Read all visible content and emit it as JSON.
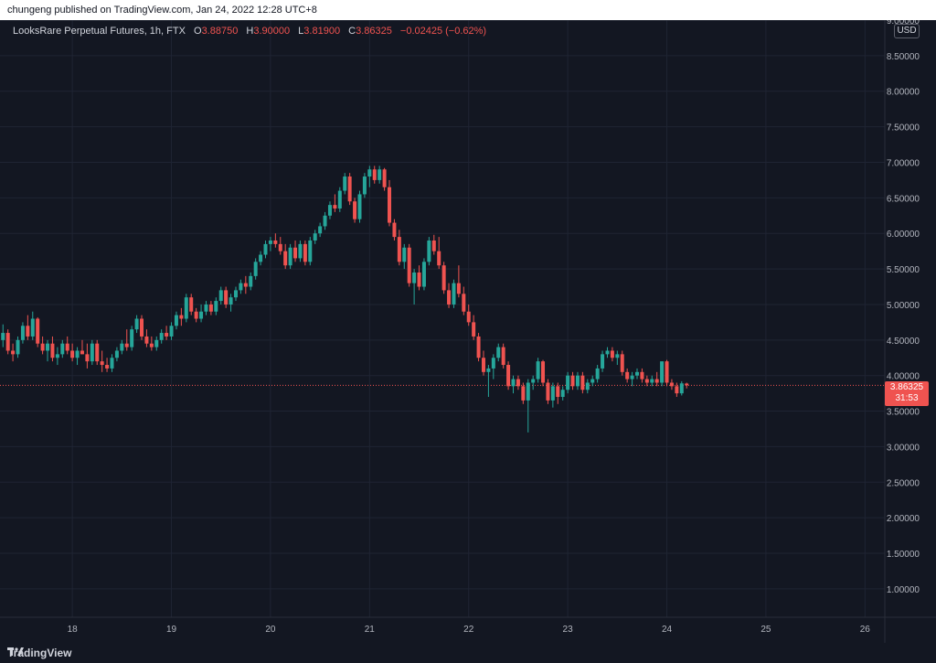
{
  "publisher": "chungeng published on TradingView.com, Jan 24, 2022 12:28 UTC+8",
  "legend": {
    "symbol": "LooksRare Perpetual Futures, 1h, FTX",
    "open_label": "O",
    "open": "3.88750",
    "high_label": "H",
    "high": "3.90000",
    "low_label": "L",
    "low": "3.81900",
    "close_label": "C",
    "close": "3.86325",
    "change": "−0.02425 (−0.62%)"
  },
  "currency": "USD",
  "last_price": {
    "price": "3.86325",
    "countdown": "31:53"
  },
  "brand": "TradingView",
  "colors": {
    "up": "#26a69a",
    "down": "#ef5350",
    "background": "#131722",
    "grid": "#1f2433"
  },
  "chart_data": {
    "type": "candlestick",
    "title": "LooksRare Perpetual Futures, 1h, FTX",
    "currency": "USD",
    "yaxis": {
      "ticks": [
        "9.00000",
        "8.50000",
        "8.00000",
        "7.50000",
        "7.00000",
        "6.50000",
        "6.00000",
        "5.50000",
        "5.00000",
        "4.50000",
        "4.00000",
        "3.50000",
        "3.00000",
        "2.50000",
        "2.00000",
        "1.50000",
        "1.00000"
      ],
      "range": [
        0.6,
        9.0
      ]
    },
    "xaxis": {
      "ticks": [
        "18",
        "19",
        "20",
        "21",
        "22",
        "23",
        "24",
        "25",
        "26"
      ],
      "range": [
        17.27,
        26.2
      ]
    },
    "last_price": 3.86325,
    "candles": [
      {
        "t": 17.3,
        "o": 4.5,
        "h": 4.72,
        "l": 4.4,
        "c": 4.6
      },
      {
        "t": 17.35,
        "o": 4.6,
        "h": 4.65,
        "l": 4.3,
        "c": 4.35
      },
      {
        "t": 17.4,
        "o": 4.35,
        "h": 4.45,
        "l": 4.2,
        "c": 4.3
      },
      {
        "t": 17.45,
        "o": 4.3,
        "h": 4.55,
        "l": 4.25,
        "c": 4.5
      },
      {
        "t": 17.5,
        "o": 4.5,
        "h": 4.75,
        "l": 4.45,
        "c": 4.7
      },
      {
        "t": 17.55,
        "o": 4.7,
        "h": 4.85,
        "l": 4.5,
        "c": 4.55
      },
      {
        "t": 17.6,
        "o": 4.55,
        "h": 4.9,
        "l": 4.5,
        "c": 4.8
      },
      {
        "t": 17.65,
        "o": 4.8,
        "h": 4.82,
        "l": 4.4,
        "c": 4.45
      },
      {
        "t": 17.7,
        "o": 4.45,
        "h": 4.55,
        "l": 4.3,
        "c": 4.35
      },
      {
        "t": 17.75,
        "o": 4.35,
        "h": 4.5,
        "l": 4.2,
        "c": 4.45
      },
      {
        "t": 17.8,
        "o": 4.45,
        "h": 4.55,
        "l": 4.2,
        "c": 4.25
      },
      {
        "t": 17.85,
        "o": 4.25,
        "h": 4.4,
        "l": 4.15,
        "c": 4.3
      },
      {
        "t": 17.9,
        "o": 4.3,
        "h": 4.5,
        "l": 4.25,
        "c": 4.45
      },
      {
        "t": 17.95,
        "o": 4.45,
        "h": 4.55,
        "l": 4.3,
        "c": 4.35
      },
      {
        "t": 18.0,
        "o": 4.35,
        "h": 4.45,
        "l": 4.2,
        "c": 4.25
      },
      {
        "t": 18.05,
        "o": 4.25,
        "h": 4.4,
        "l": 4.15,
        "c": 4.35
      },
      {
        "t": 18.1,
        "o": 4.35,
        "h": 4.5,
        "l": 4.3,
        "c": 4.3
      },
      {
        "t": 18.15,
        "o": 4.3,
        "h": 4.45,
        "l": 4.1,
        "c": 4.2
      },
      {
        "t": 18.2,
        "o": 4.2,
        "h": 4.5,
        "l": 4.15,
        "c": 4.45
      },
      {
        "t": 18.25,
        "o": 4.45,
        "h": 4.5,
        "l": 4.15,
        "c": 4.2
      },
      {
        "t": 18.3,
        "o": 4.2,
        "h": 4.35,
        "l": 4.05,
        "c": 4.15
      },
      {
        "t": 18.35,
        "o": 4.15,
        "h": 4.25,
        "l": 4.05,
        "c": 4.1
      },
      {
        "t": 18.4,
        "o": 4.1,
        "h": 4.3,
        "l": 4.05,
        "c": 4.25
      },
      {
        "t": 18.45,
        "o": 4.25,
        "h": 4.4,
        "l": 4.2,
        "c": 4.35
      },
      {
        "t": 18.5,
        "o": 4.35,
        "h": 4.5,
        "l": 4.3,
        "c": 4.45
      },
      {
        "t": 18.55,
        "o": 4.45,
        "h": 4.65,
        "l": 4.35,
        "c": 4.4
      },
      {
        "t": 18.6,
        "o": 4.4,
        "h": 4.7,
        "l": 4.35,
        "c": 4.65
      },
      {
        "t": 18.65,
        "o": 4.65,
        "h": 4.85,
        "l": 4.6,
        "c": 4.8
      },
      {
        "t": 18.7,
        "o": 4.8,
        "h": 4.85,
        "l": 4.5,
        "c": 4.55
      },
      {
        "t": 18.75,
        "o": 4.55,
        "h": 4.65,
        "l": 4.4,
        "c": 4.45
      },
      {
        "t": 18.8,
        "o": 4.45,
        "h": 4.55,
        "l": 4.35,
        "c": 4.4
      },
      {
        "t": 18.85,
        "o": 4.4,
        "h": 4.55,
        "l": 4.35,
        "c": 4.5
      },
      {
        "t": 18.9,
        "o": 4.5,
        "h": 4.65,
        "l": 4.45,
        "c": 4.6
      },
      {
        "t": 18.95,
        "o": 4.6,
        "h": 4.7,
        "l": 4.5,
        "c": 4.55
      },
      {
        "t": 19.0,
        "o": 4.55,
        "h": 4.75,
        "l": 4.5,
        "c": 4.7
      },
      {
        "t": 19.05,
        "o": 4.7,
        "h": 4.9,
        "l": 4.65,
        "c": 4.85
      },
      {
        "t": 19.1,
        "o": 4.85,
        "h": 4.95,
        "l": 4.7,
        "c": 4.8
      },
      {
        "t": 19.15,
        "o": 4.8,
        "h": 5.15,
        "l": 4.75,
        "c": 5.1
      },
      {
        "t": 19.2,
        "o": 5.1,
        "h": 5.15,
        "l": 4.85,
        "c": 4.9
      },
      {
        "t": 19.25,
        "o": 4.9,
        "h": 4.95,
        "l": 4.75,
        "c": 4.8
      },
      {
        "t": 19.3,
        "o": 4.8,
        "h": 5.0,
        "l": 4.75,
        "c": 4.9
      },
      {
        "t": 19.35,
        "o": 4.9,
        "h": 5.05,
        "l": 4.85,
        "c": 5.0
      },
      {
        "t": 19.4,
        "o": 5.0,
        "h": 5.05,
        "l": 4.85,
        "c": 4.9
      },
      {
        "t": 19.45,
        "o": 4.9,
        "h": 5.1,
        "l": 4.85,
        "c": 5.05
      },
      {
        "t": 19.5,
        "o": 5.05,
        "h": 5.25,
        "l": 5.0,
        "c": 5.2
      },
      {
        "t": 19.55,
        "o": 5.2,
        "h": 5.25,
        "l": 4.95,
        "c": 5.0
      },
      {
        "t": 19.6,
        "o": 5.0,
        "h": 5.15,
        "l": 4.9,
        "c": 5.1
      },
      {
        "t": 19.65,
        "o": 5.1,
        "h": 5.25,
        "l": 5.05,
        "c": 5.2
      },
      {
        "t": 19.7,
        "o": 5.2,
        "h": 5.35,
        "l": 5.15,
        "c": 5.3
      },
      {
        "t": 19.75,
        "o": 5.3,
        "h": 5.4,
        "l": 5.15,
        "c": 5.25
      },
      {
        "t": 19.8,
        "o": 5.25,
        "h": 5.45,
        "l": 5.2,
        "c": 5.4
      },
      {
        "t": 19.85,
        "o": 5.4,
        "h": 5.65,
        "l": 5.35,
        "c": 5.6
      },
      {
        "t": 19.9,
        "o": 5.6,
        "h": 5.75,
        "l": 5.55,
        "c": 5.7
      },
      {
        "t": 19.95,
        "o": 5.7,
        "h": 5.9,
        "l": 5.65,
        "c": 5.85
      },
      {
        "t": 20.0,
        "o": 5.85,
        "h": 5.95,
        "l": 5.75,
        "c": 5.9
      },
      {
        "t": 20.05,
        "o": 5.9,
        "h": 6.0,
        "l": 5.8,
        "c": 5.85
      },
      {
        "t": 20.1,
        "o": 5.85,
        "h": 5.95,
        "l": 5.7,
        "c": 5.75
      },
      {
        "t": 20.15,
        "o": 5.75,
        "h": 5.85,
        "l": 5.5,
        "c": 5.55
      },
      {
        "t": 20.2,
        "o": 5.55,
        "h": 5.85,
        "l": 5.5,
        "c": 5.8
      },
      {
        "t": 20.25,
        "o": 5.8,
        "h": 5.9,
        "l": 5.6,
        "c": 5.65
      },
      {
        "t": 20.3,
        "o": 5.65,
        "h": 5.9,
        "l": 5.6,
        "c": 5.85
      },
      {
        "t": 20.35,
        "o": 5.85,
        "h": 5.9,
        "l": 5.55,
        "c": 5.6
      },
      {
        "t": 20.4,
        "o": 5.6,
        "h": 5.95,
        "l": 5.55,
        "c": 5.9
      },
      {
        "t": 20.45,
        "o": 5.9,
        "h": 6.05,
        "l": 5.85,
        "c": 6.0
      },
      {
        "t": 20.5,
        "o": 6.0,
        "h": 6.15,
        "l": 5.95,
        "c": 6.1
      },
      {
        "t": 20.55,
        "o": 6.1,
        "h": 6.3,
        "l": 6.05,
        "c": 6.25
      },
      {
        "t": 20.6,
        "o": 6.25,
        "h": 6.45,
        "l": 6.2,
        "c": 6.4
      },
      {
        "t": 20.65,
        "o": 6.4,
        "h": 6.55,
        "l": 6.3,
        "c": 6.35
      },
      {
        "t": 20.7,
        "o": 6.35,
        "h": 6.65,
        "l": 6.3,
        "c": 6.6
      },
      {
        "t": 20.75,
        "o": 6.6,
        "h": 6.85,
        "l": 6.55,
        "c": 6.8
      },
      {
        "t": 20.8,
        "o": 6.8,
        "h": 6.85,
        "l": 6.4,
        "c": 6.45
      },
      {
        "t": 20.85,
        "o": 6.45,
        "h": 6.5,
        "l": 6.15,
        "c": 6.2
      },
      {
        "t": 20.9,
        "o": 6.2,
        "h": 6.6,
        "l": 6.15,
        "c": 6.55
      },
      {
        "t": 20.95,
        "o": 6.55,
        "h": 6.85,
        "l": 6.5,
        "c": 6.8
      },
      {
        "t": 21.0,
        "o": 6.8,
        "h": 6.95,
        "l": 6.65,
        "c": 6.9
      },
      {
        "t": 21.05,
        "o": 6.9,
        "h": 6.95,
        "l": 6.7,
        "c": 6.75
      },
      {
        "t": 21.1,
        "o": 6.75,
        "h": 6.95,
        "l": 6.7,
        "c": 6.9
      },
      {
        "t": 21.15,
        "o": 6.9,
        "h": 6.92,
        "l": 6.6,
        "c": 6.65
      },
      {
        "t": 21.2,
        "o": 6.65,
        "h": 6.75,
        "l": 6.1,
        "c": 6.15
      },
      {
        "t": 21.25,
        "o": 6.15,
        "h": 6.2,
        "l": 5.9,
        "c": 5.95
      },
      {
        "t": 21.3,
        "o": 5.95,
        "h": 6.05,
        "l": 5.55,
        "c": 5.6
      },
      {
        "t": 21.35,
        "o": 5.6,
        "h": 5.85,
        "l": 5.5,
        "c": 5.8
      },
      {
        "t": 21.4,
        "o": 5.8,
        "h": 5.85,
        "l": 5.25,
        "c": 5.3
      },
      {
        "t": 21.45,
        "o": 5.3,
        "h": 5.5,
        "l": 5.0,
        "c": 5.45
      },
      {
        "t": 21.5,
        "o": 5.45,
        "h": 5.55,
        "l": 5.2,
        "c": 5.25
      },
      {
        "t": 21.55,
        "o": 5.25,
        "h": 5.65,
        "l": 5.2,
        "c": 5.6
      },
      {
        "t": 21.6,
        "o": 5.6,
        "h": 5.95,
        "l": 5.55,
        "c": 5.9
      },
      {
        "t": 21.65,
        "o": 5.9,
        "h": 5.98,
        "l": 5.7,
        "c": 5.75
      },
      {
        "t": 21.7,
        "o": 5.75,
        "h": 5.95,
        "l": 5.5,
        "c": 5.55
      },
      {
        "t": 21.75,
        "o": 5.55,
        "h": 5.6,
        "l": 5.15,
        "c": 5.2
      },
      {
        "t": 21.8,
        "o": 5.2,
        "h": 5.3,
        "l": 4.95,
        "c": 5.0
      },
      {
        "t": 21.85,
        "o": 5.0,
        "h": 5.35,
        "l": 4.95,
        "c": 5.3
      },
      {
        "t": 21.9,
        "o": 5.3,
        "h": 5.55,
        "l": 5.1,
        "c": 5.15
      },
      {
        "t": 21.95,
        "o": 5.15,
        "h": 5.25,
        "l": 4.85,
        "c": 4.9
      },
      {
        "t": 22.0,
        "o": 4.9,
        "h": 5.0,
        "l": 4.7,
        "c": 4.75
      },
      {
        "t": 22.05,
        "o": 4.75,
        "h": 4.85,
        "l": 4.5,
        "c": 4.55
      },
      {
        "t": 22.1,
        "o": 4.55,
        "h": 4.6,
        "l": 4.2,
        "c": 4.25
      },
      {
        "t": 22.15,
        "o": 4.25,
        "h": 4.35,
        "l": 4.0,
        "c": 4.05
      },
      {
        "t": 22.2,
        "o": 4.05,
        "h": 4.15,
        "l": 3.7,
        "c": 4.1
      },
      {
        "t": 22.25,
        "o": 4.1,
        "h": 4.3,
        "l": 3.95,
        "c": 4.25
      },
      {
        "t": 22.3,
        "o": 4.25,
        "h": 4.45,
        "l": 4.2,
        "c": 4.4
      },
      {
        "t": 22.35,
        "o": 4.4,
        "h": 4.45,
        "l": 4.1,
        "c": 4.15
      },
      {
        "t": 22.4,
        "o": 4.15,
        "h": 4.2,
        "l": 3.8,
        "c": 3.85
      },
      {
        "t": 22.45,
        "o": 3.85,
        "h": 4.0,
        "l": 3.75,
        "c": 3.95
      },
      {
        "t": 22.5,
        "o": 3.95,
        "h": 4.0,
        "l": 3.8,
        "c": 3.85
      },
      {
        "t": 22.55,
        "o": 3.85,
        "h": 3.9,
        "l": 3.6,
        "c": 3.65
      },
      {
        "t": 22.6,
        "o": 3.65,
        "h": 3.95,
        "l": 3.2,
        "c": 3.9
      },
      {
        "t": 22.65,
        "o": 3.9,
        "h": 4.0,
        "l": 3.8,
        "c": 3.95
      },
      {
        "t": 22.7,
        "o": 3.95,
        "h": 4.25,
        "l": 3.9,
        "c": 4.2
      },
      {
        "t": 22.75,
        "o": 4.2,
        "h": 4.22,
        "l": 3.85,
        "c": 3.9
      },
      {
        "t": 22.8,
        "o": 3.9,
        "h": 3.95,
        "l": 3.6,
        "c": 3.65
      },
      {
        "t": 22.85,
        "o": 3.65,
        "h": 3.9,
        "l": 3.55,
        "c": 3.85
      },
      {
        "t": 22.9,
        "o": 3.85,
        "h": 3.9,
        "l": 3.6,
        "c": 3.7
      },
      {
        "t": 22.95,
        "o": 3.7,
        "h": 3.85,
        "l": 3.65,
        "c": 3.8
      },
      {
        "t": 23.0,
        "o": 3.8,
        "h": 4.05,
        "l": 3.75,
        "c": 4.0
      },
      {
        "t": 23.05,
        "o": 4.0,
        "h": 4.05,
        "l": 3.8,
        "c": 3.85
      },
      {
        "t": 23.1,
        "o": 3.85,
        "h": 4.05,
        "l": 3.8,
        "c": 4.0
      },
      {
        "t": 23.15,
        "o": 4.0,
        "h": 4.05,
        "l": 3.75,
        "c": 3.8
      },
      {
        "t": 23.2,
        "o": 3.8,
        "h": 3.95,
        "l": 3.75,
        "c": 3.9
      },
      {
        "t": 23.25,
        "o": 3.9,
        "h": 4.0,
        "l": 3.85,
        "c": 3.95
      },
      {
        "t": 23.3,
        "o": 3.95,
        "h": 4.15,
        "l": 3.9,
        "c": 4.1
      },
      {
        "t": 23.35,
        "o": 4.1,
        "h": 4.35,
        "l": 4.05,
        "c": 4.3
      },
      {
        "t": 23.4,
        "o": 4.3,
        "h": 4.4,
        "l": 4.25,
        "c": 4.35
      },
      {
        "t": 23.45,
        "o": 4.35,
        "h": 4.4,
        "l": 4.2,
        "c": 4.25
      },
      {
        "t": 23.5,
        "o": 4.25,
        "h": 4.35,
        "l": 4.15,
        "c": 4.3
      },
      {
        "t": 23.55,
        "o": 4.3,
        "h": 4.35,
        "l": 4.0,
        "c": 4.05
      },
      {
        "t": 23.6,
        "o": 4.05,
        "h": 4.1,
        "l": 3.9,
        "c": 3.95
      },
      {
        "t": 23.65,
        "o": 3.95,
        "h": 4.05,
        "l": 3.85,
        "c": 4.0
      },
      {
        "t": 23.7,
        "o": 4.0,
        "h": 4.1,
        "l": 3.95,
        "c": 4.05
      },
      {
        "t": 23.75,
        "o": 4.05,
        "h": 4.1,
        "l": 3.9,
        "c": 3.95
      },
      {
        "t": 23.8,
        "o": 3.95,
        "h": 4.0,
        "l": 3.85,
        "c": 3.9
      },
      {
        "t": 23.85,
        "o": 3.9,
        "h": 4.0,
        "l": 3.85,
        "c": 3.95
      },
      {
        "t": 23.9,
        "o": 3.95,
        "h": 4.05,
        "l": 3.85,
        "c": 3.9
      },
      {
        "t": 23.95,
        "o": 3.9,
        "h": 4.2,
        "l": 3.85,
        "c": 4.2
      },
      {
        "t": 24.0,
        "o": 4.2,
        "h": 4.22,
        "l": 3.85,
        "c": 3.9
      },
      {
        "t": 24.05,
        "o": 3.9,
        "h": 3.95,
        "l": 3.8,
        "c": 3.85
      },
      {
        "t": 24.1,
        "o": 3.85,
        "h": 3.9,
        "l": 3.7,
        "c": 3.75
      },
      {
        "t": 24.15,
        "o": 3.75,
        "h": 3.92,
        "l": 3.72,
        "c": 3.89
      },
      {
        "t": 24.2,
        "o": 3.8875,
        "h": 3.9,
        "l": 3.819,
        "c": 3.86325
      }
    ]
  }
}
